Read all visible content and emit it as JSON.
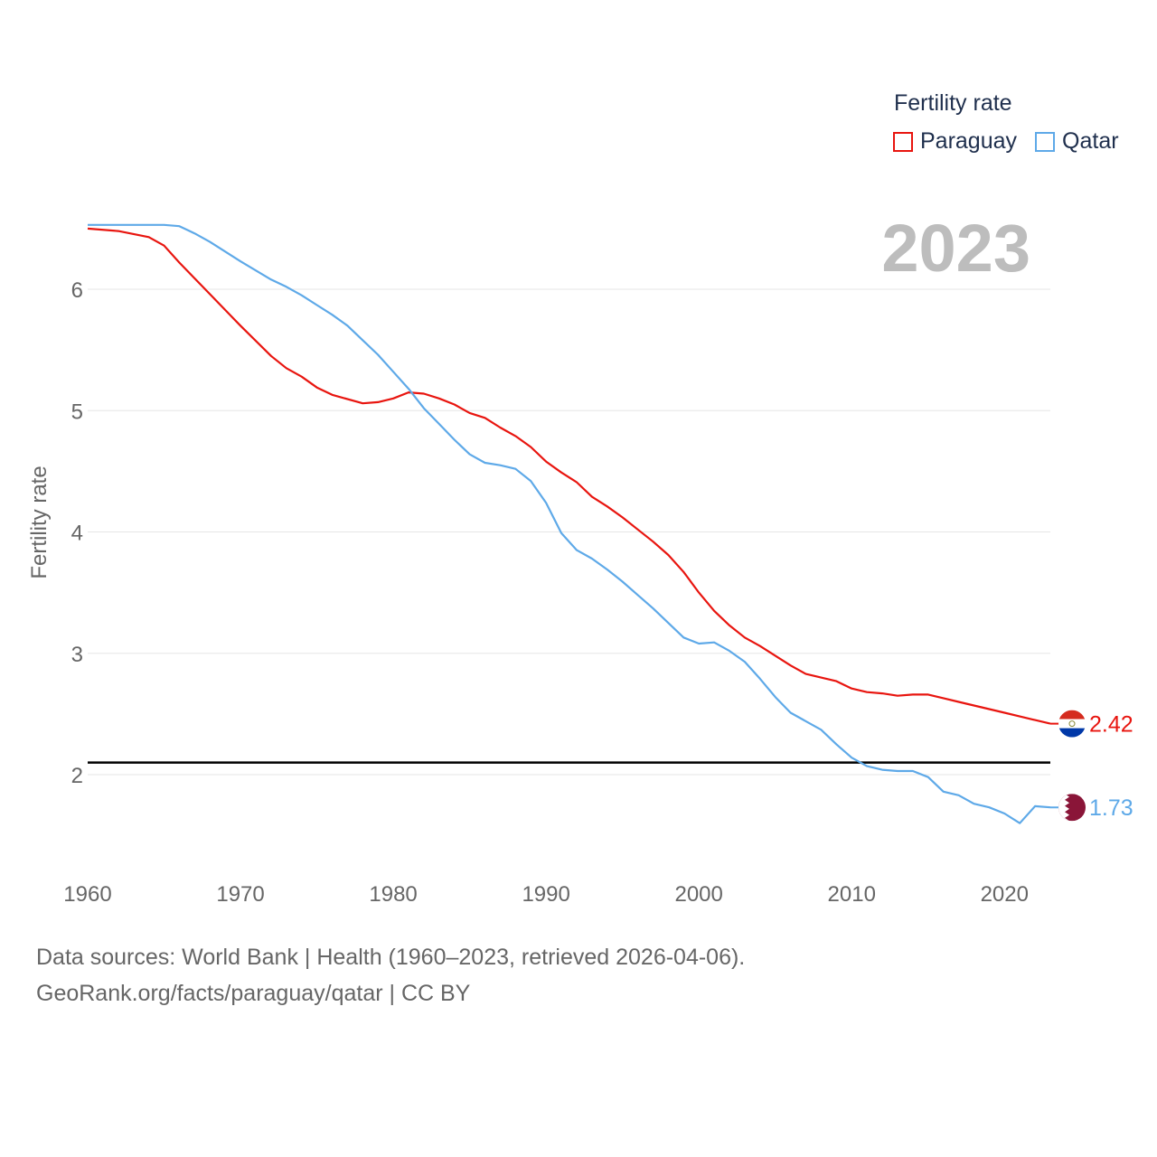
{
  "legend": {
    "title": "Fertility rate",
    "items": [
      {
        "label": "Paraguay",
        "color": "#e8150f"
      },
      {
        "label": "Qatar",
        "color": "#5ea9e8"
      }
    ]
  },
  "footer": {
    "line1": "Data sources: World Bank | Health (1960–2023, retrieved 2026-04-06).",
    "line2": "GeoRank.org/facts/paraguay/qatar | CC BY"
  },
  "chart_data": {
    "type": "line",
    "title": "Fertility rate",
    "year_label": "2023",
    "xlabel": "",
    "ylabel": "Fertility rate",
    "xlim": [
      1960,
      2023
    ],
    "ylim": [
      1.3,
      6.6
    ],
    "x_ticks": [
      1960,
      1970,
      1980,
      1990,
      2000,
      2010,
      2020
    ],
    "y_ticks": [
      2,
      3,
      4,
      5,
      6
    ],
    "reference_line": 2.1,
    "grid": true,
    "legend_position": "top-right",
    "series": [
      {
        "name": "Paraguay",
        "color": "#e8150f",
        "end_label": "2.42",
        "flag": "paraguay-flag-icon",
        "points": [
          [
            1960,
            6.5
          ],
          [
            1962,
            6.48
          ],
          [
            1964,
            6.43
          ],
          [
            1965,
            6.36
          ],
          [
            1966,
            6.22
          ],
          [
            1968,
            5.96
          ],
          [
            1970,
            5.7
          ],
          [
            1972,
            5.45
          ],
          [
            1973,
            5.35
          ],
          [
            1974,
            5.28
          ],
          [
            1975,
            5.19
          ],
          [
            1976,
            5.13
          ],
          [
            1978,
            5.06
          ],
          [
            1979,
            5.07
          ],
          [
            1980,
            5.1
          ],
          [
            1981,
            5.15
          ],
          [
            1982,
            5.14
          ],
          [
            1983,
            5.1
          ],
          [
            1984,
            5.05
          ],
          [
            1985,
            4.98
          ],
          [
            1986,
            4.94
          ],
          [
            1987,
            4.86
          ],
          [
            1988,
            4.79
          ],
          [
            1989,
            4.7
          ],
          [
            1990,
            4.58
          ],
          [
            1991,
            4.49
          ],
          [
            1992,
            4.41
          ],
          [
            1993,
            4.29
          ],
          [
            1994,
            4.21
          ],
          [
            1995,
            4.12
          ],
          [
            1996,
            4.02
          ],
          [
            1997,
            3.92
          ],
          [
            1998,
            3.81
          ],
          [
            1999,
            3.67
          ],
          [
            2000,
            3.5
          ],
          [
            2001,
            3.35
          ],
          [
            2002,
            3.23
          ],
          [
            2003,
            3.13
          ],
          [
            2004,
            3.06
          ],
          [
            2005,
            2.98
          ],
          [
            2006,
            2.9
          ],
          [
            2007,
            2.83
          ],
          [
            2008,
            2.8
          ],
          [
            2009,
            2.77
          ],
          [
            2010,
            2.71
          ],
          [
            2011,
            2.68
          ],
          [
            2012,
            2.67
          ],
          [
            2013,
            2.65
          ],
          [
            2014,
            2.66
          ],
          [
            2015,
            2.66
          ],
          [
            2016,
            2.63
          ],
          [
            2017,
            2.6
          ],
          [
            2018,
            2.57
          ],
          [
            2019,
            2.54
          ],
          [
            2020,
            2.51
          ],
          [
            2021,
            2.48
          ],
          [
            2022,
            2.45
          ],
          [
            2023,
            2.42
          ]
        ]
      },
      {
        "name": "Qatar",
        "color": "#5ea9e8",
        "end_label": "1.73",
        "flag": "qatar-flag-icon",
        "points": [
          [
            1960,
            6.53
          ],
          [
            1962,
            6.53
          ],
          [
            1964,
            6.53
          ],
          [
            1965,
            6.53
          ],
          [
            1966,
            6.52
          ],
          [
            1967,
            6.46
          ],
          [
            1968,
            6.39
          ],
          [
            1970,
            6.23
          ],
          [
            1972,
            6.08
          ],
          [
            1973,
            6.02
          ],
          [
            1974,
            5.95
          ],
          [
            1975,
            5.87
          ],
          [
            1976,
            5.79
          ],
          [
            1977,
            5.7
          ],
          [
            1978,
            5.58
          ],
          [
            1979,
            5.46
          ],
          [
            1980,
            5.32
          ],
          [
            1981,
            5.18
          ],
          [
            1982,
            5.02
          ],
          [
            1983,
            4.89
          ],
          [
            1984,
            4.76
          ],
          [
            1985,
            4.64
          ],
          [
            1986,
            4.57
          ],
          [
            1987,
            4.55
          ],
          [
            1988,
            4.52
          ],
          [
            1989,
            4.42
          ],
          [
            1990,
            4.24
          ],
          [
            1991,
            3.99
          ],
          [
            1992,
            3.85
          ],
          [
            1993,
            3.78
          ],
          [
            1994,
            3.69
          ],
          [
            1995,
            3.59
          ],
          [
            1996,
            3.48
          ],
          [
            1997,
            3.37
          ],
          [
            1998,
            3.25
          ],
          [
            1999,
            3.13
          ],
          [
            2000,
            3.08
          ],
          [
            2001,
            3.09
          ],
          [
            2002,
            3.02
          ],
          [
            2003,
            2.93
          ],
          [
            2004,
            2.79
          ],
          [
            2005,
            2.64
          ],
          [
            2006,
            2.51
          ],
          [
            2007,
            2.44
          ],
          [
            2008,
            2.37
          ],
          [
            2009,
            2.25
          ],
          [
            2010,
            2.14
          ],
          [
            2011,
            2.07
          ],
          [
            2012,
            2.04
          ],
          [
            2013,
            2.03
          ],
          [
            2014,
            2.03
          ],
          [
            2015,
            1.98
          ],
          [
            2016,
            1.86
          ],
          [
            2017,
            1.83
          ],
          [
            2018,
            1.76
          ],
          [
            2019,
            1.73
          ],
          [
            2020,
            1.68
          ],
          [
            2021,
            1.6
          ],
          [
            2022,
            1.74
          ],
          [
            2023,
            1.73
          ]
        ]
      }
    ]
  }
}
